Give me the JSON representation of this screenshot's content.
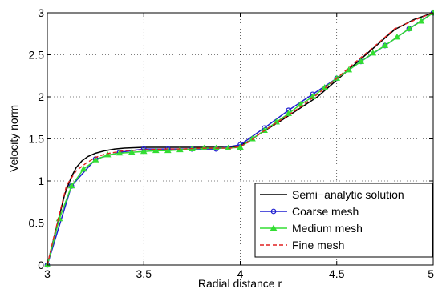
{
  "chart_data": {
    "type": "line",
    "title": "",
    "xlabel": "Radial distance r",
    "ylabel": "Velocity norm",
    "xlim": [
      3,
      5
    ],
    "ylim": [
      0,
      3
    ],
    "xticks": [
      3,
      3.5,
      4,
      4.5,
      5
    ],
    "yticks": [
      0,
      0.5,
      1,
      1.5,
      2,
      2.5,
      3
    ],
    "xtick_labels": [
      "3",
      "3.5",
      "4",
      "4.5",
      "5"
    ],
    "ytick_labels": [
      "0",
      "0.5",
      "1",
      "1.5",
      "2",
      "2.5",
      "3"
    ],
    "grid": true,
    "legend_position": "bottom-right",
    "series": [
      {
        "name": "Semi−analytic solution",
        "color": "#000000",
        "style": "solid",
        "marker": "none",
        "x": [
          3.0,
          3.03,
          3.06,
          3.09,
          3.125,
          3.15,
          3.18,
          3.21,
          3.25,
          3.3,
          3.35,
          3.4,
          3.5,
          3.6,
          3.7,
          3.8,
          3.9,
          3.95,
          3.98,
          4.0,
          4.05,
          4.1,
          4.2,
          4.3,
          4.4,
          4.5,
          4.6,
          4.7,
          4.8,
          4.9,
          5.0
        ],
        "y": [
          0.0,
          0.28,
          0.56,
          0.84,
          1.05,
          1.16,
          1.24,
          1.29,
          1.33,
          1.36,
          1.38,
          1.39,
          1.4,
          1.4,
          1.4,
          1.4,
          1.4,
          1.4,
          1.41,
          1.42,
          1.48,
          1.56,
          1.7,
          1.85,
          2.0,
          2.2,
          2.4,
          2.6,
          2.8,
          2.92,
          3.0
        ]
      },
      {
        "name": "Coarse mesh",
        "color": "#1f1fd0",
        "style": "solid",
        "marker": "circle",
        "x": [
          3.0,
          3.125,
          3.25,
          3.375,
          3.5,
          3.625,
          3.75,
          3.875,
          4.0,
          4.125,
          4.25,
          4.375,
          4.5,
          4.625,
          4.75,
          4.875,
          5.0
        ],
        "y": [
          0.0,
          0.94,
          1.26,
          1.34,
          1.38,
          1.38,
          1.38,
          1.38,
          1.43,
          1.63,
          1.84,
          2.03,
          2.22,
          2.42,
          2.61,
          2.81,
          3.0
        ]
      },
      {
        "name": "Medium mesh",
        "color": "#33dd33",
        "style": "solid",
        "marker": "triangle",
        "x": [
          3.0,
          3.0625,
          3.125,
          3.1875,
          3.25,
          3.3125,
          3.375,
          3.4375,
          3.5,
          3.5625,
          3.625,
          3.6875,
          3.75,
          3.8125,
          3.875,
          3.9375,
          4.0,
          4.0625,
          4.125,
          4.1875,
          4.25,
          4.3125,
          4.375,
          4.4375,
          4.5,
          4.5625,
          4.625,
          4.6875,
          4.75,
          4.8125,
          4.875,
          4.9375,
          5.0
        ],
        "y": [
          0.0,
          0.55,
          0.94,
          1.14,
          1.25,
          1.31,
          1.33,
          1.34,
          1.35,
          1.36,
          1.36,
          1.37,
          1.38,
          1.39,
          1.39,
          1.39,
          1.4,
          1.5,
          1.6,
          1.7,
          1.8,
          1.91,
          2.0,
          2.11,
          2.22,
          2.32,
          2.42,
          2.52,
          2.61,
          2.71,
          2.81,
          2.9,
          3.0
        ]
      },
      {
        "name": "Fine mesh",
        "color": "#e02020",
        "style": "dashed",
        "marker": "none",
        "x": [
          3.0,
          3.03,
          3.06,
          3.1,
          3.15,
          3.2,
          3.25,
          3.3,
          3.4,
          3.5,
          3.6,
          3.7,
          3.8,
          3.9,
          3.95,
          4.0,
          4.05,
          4.1,
          4.2,
          4.3,
          4.4,
          4.5,
          4.6,
          4.7,
          4.8,
          4.9,
          5.0
        ],
        "y": [
          0.0,
          0.3,
          0.58,
          0.95,
          1.12,
          1.21,
          1.28,
          1.32,
          1.36,
          1.37,
          1.38,
          1.38,
          1.39,
          1.39,
          1.39,
          1.41,
          1.47,
          1.56,
          1.71,
          1.86,
          2.03,
          2.22,
          2.42,
          2.61,
          2.81,
          2.91,
          3.0
        ]
      }
    ]
  }
}
